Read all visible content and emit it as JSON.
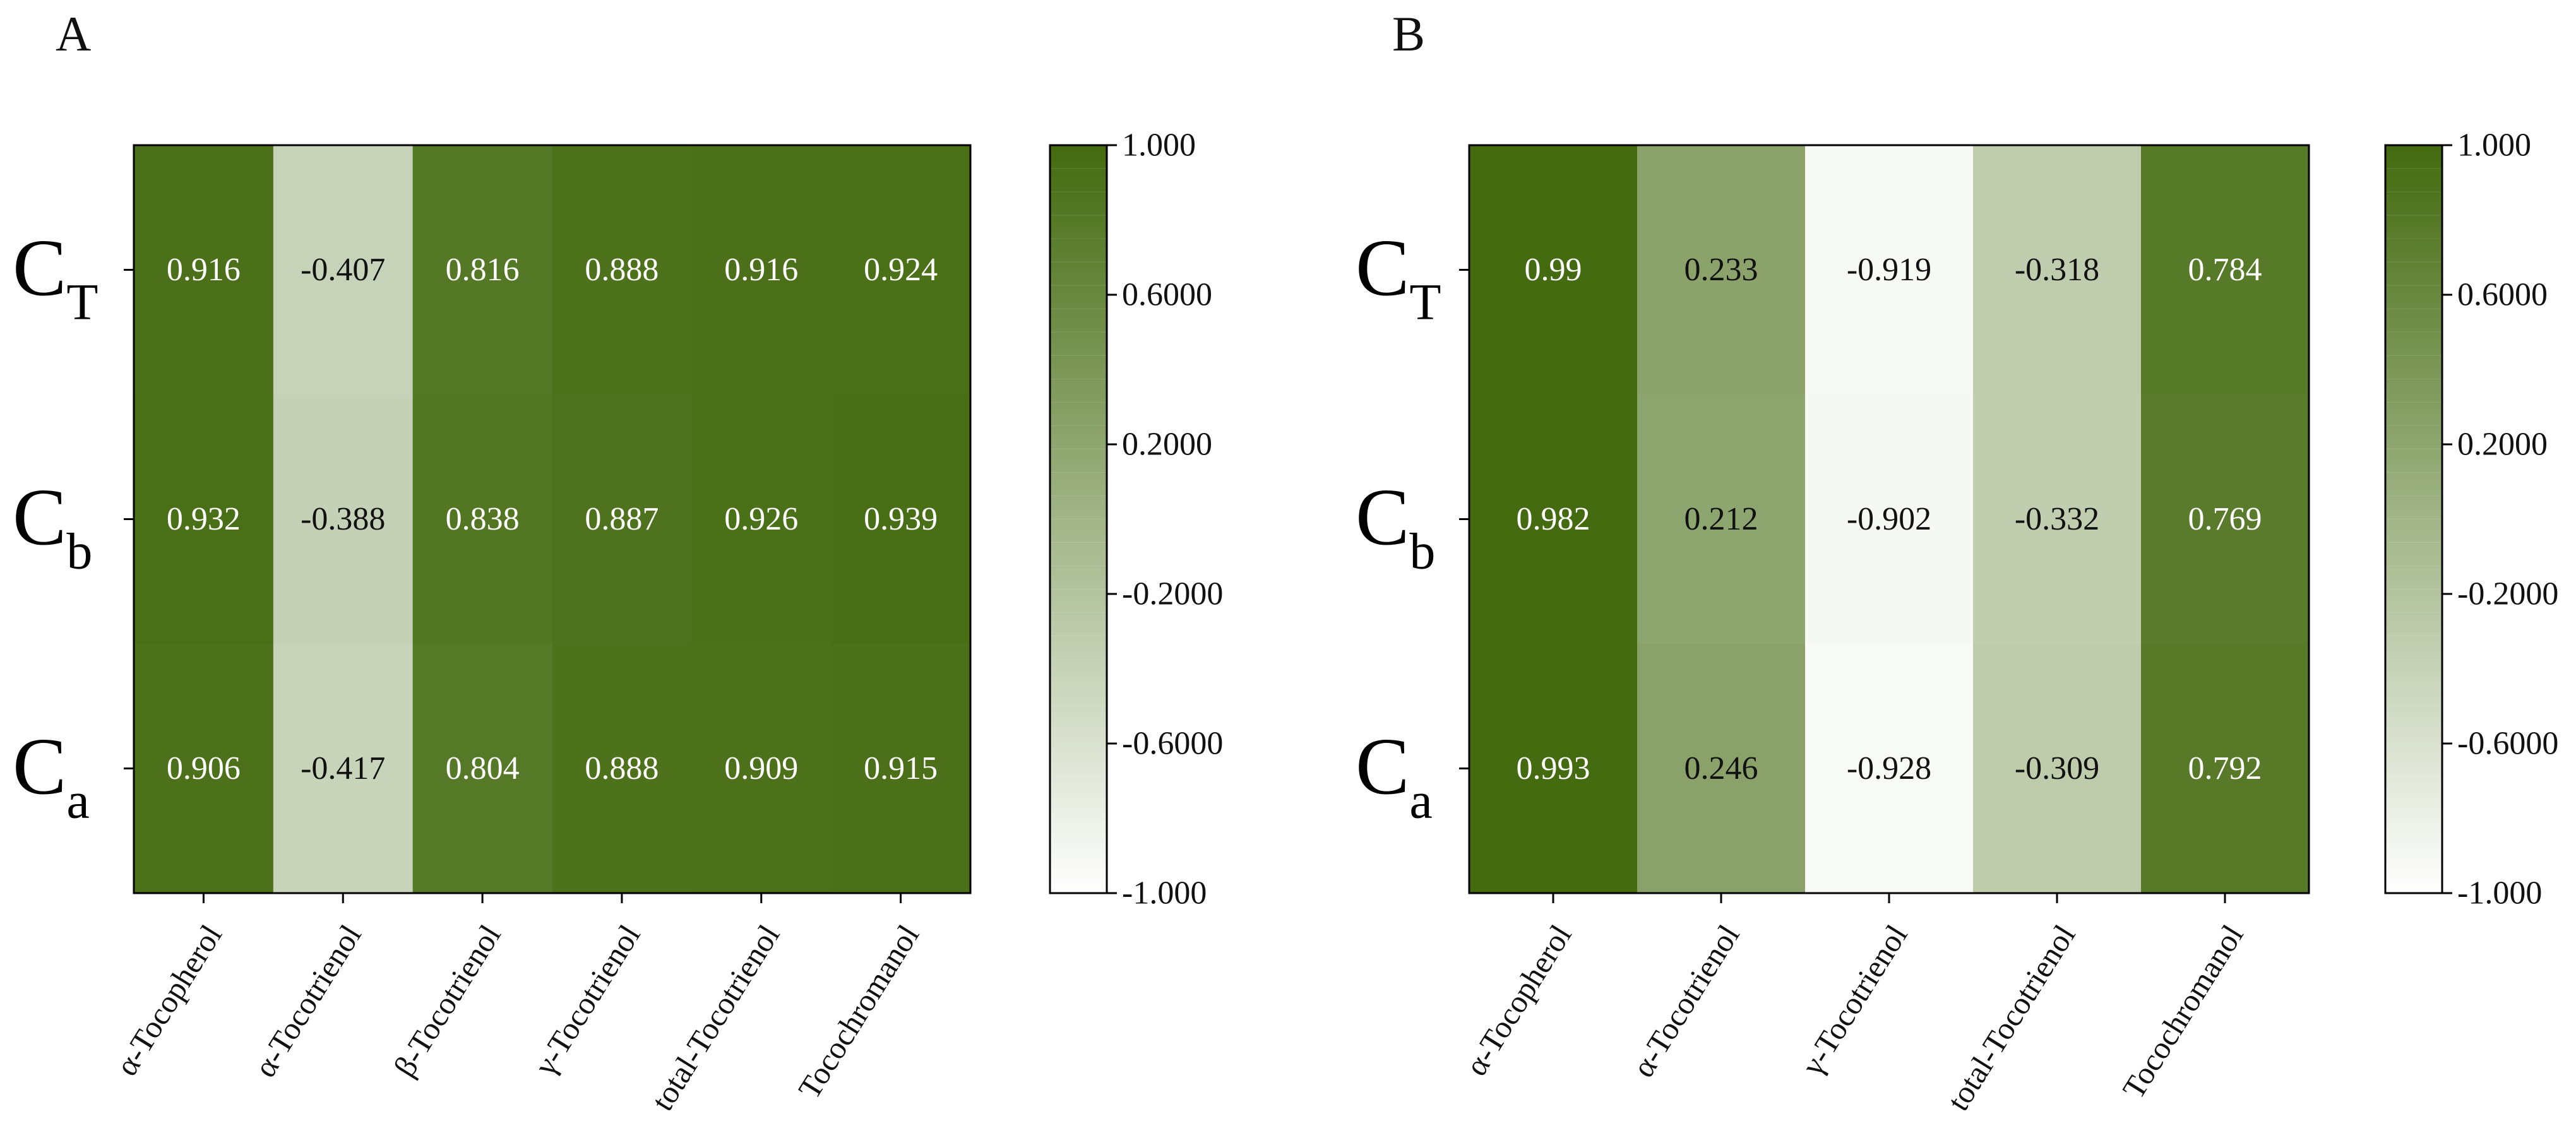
{
  "chart_data": [
    {
      "panel": "A",
      "type": "heatmap",
      "rows": [
        {
          "main": "C",
          "sub": "T"
        },
        {
          "main": "C",
          "sub": "b"
        },
        {
          "main": "C",
          "sub": "a"
        }
      ],
      "columns": [
        "α-Tocopherol",
        "α-Tocotrienol",
        "β-Tocotrienol",
        "γ-Tocotrienol",
        "total-Tocotrienol",
        "Tocochromanol"
      ],
      "values": [
        [
          0.916,
          -0.407,
          0.816,
          0.888,
          0.916,
          0.924
        ],
        [
          0.932,
          -0.388,
          0.838,
          0.887,
          0.926,
          0.939
        ],
        [
          0.906,
          -0.417,
          0.804,
          0.888,
          0.909,
          0.915
        ]
      ],
      "value_labels": [
        [
          "0.916",
          "-0.407",
          "0.816",
          "0.888",
          "0.916",
          "0.924"
        ],
        [
          "0.932",
          "-0.388",
          "0.838",
          "0.887",
          "0.926",
          "0.939"
        ],
        [
          "0.906",
          "-0.417",
          "0.804",
          "0.888",
          "0.909",
          "0.915"
        ]
      ],
      "colorbar": {
        "range": [
          -1,
          1
        ],
        "ticks": [
          "1.000",
          "0.6000",
          "0.2000",
          "-0.2000",
          "-0.6000",
          "-1.000"
        ],
        "color_low": "#ffffff",
        "color_high": "#436a0f"
      }
    },
    {
      "panel": "B",
      "type": "heatmap",
      "rows": [
        {
          "main": "C",
          "sub": "T"
        },
        {
          "main": "C",
          "sub": "b"
        },
        {
          "main": "C",
          "sub": "a"
        }
      ],
      "columns": [
        "α-Tocopherol",
        "α-Tocotrienol",
        "γ-Tocotrienol",
        "total-Tocotrienol",
        "Tocochromanol"
      ],
      "values": [
        [
          0.99,
          0.233,
          -0.919,
          -0.318,
          0.784
        ],
        [
          0.982,
          0.212,
          -0.902,
          -0.332,
          0.769
        ],
        [
          0.993,
          0.246,
          -0.928,
          -0.309,
          0.792
        ]
      ],
      "value_labels": [
        [
          "0.99",
          "0.233",
          "-0.919",
          "-0.318",
          "0.784"
        ],
        [
          "0.982",
          "0.212",
          "-0.902",
          "-0.332",
          "0.769"
        ],
        [
          "0.993",
          "0.246",
          "-0.928",
          "-0.309",
          "0.792"
        ]
      ],
      "colorbar": {
        "range": [
          -1,
          1
        ],
        "ticks": [
          "1.000",
          "0.6000",
          "0.2000",
          "-0.2000",
          "-0.6000",
          "-1.000"
        ],
        "color_low": "#ffffff",
        "color_high": "#436a0f"
      }
    }
  ]
}
